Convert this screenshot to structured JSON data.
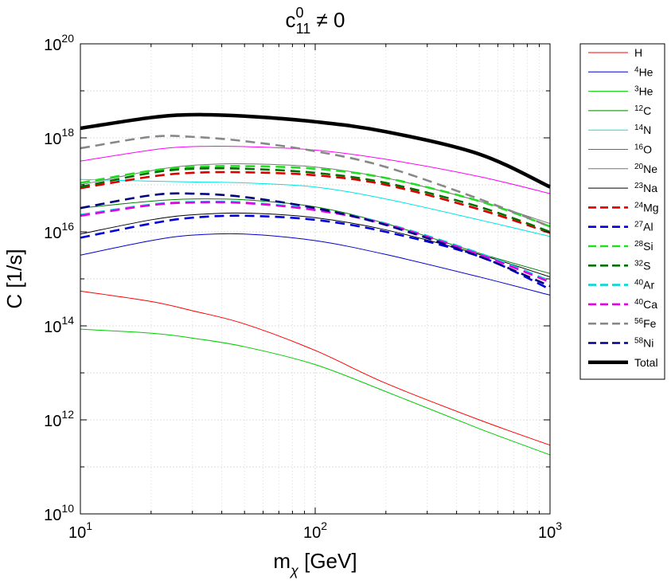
{
  "chart_data": {
    "type": "line",
    "title": "c₁₁⁰ ≠ 0",
    "title_base": "c",
    "title_sup": "0",
    "title_sub": "11",
    "title_rest": " ≠ 0",
    "xlabel_base": "m",
    "xlabel_sub": "χ",
    "xlabel_rest": " [GeV]",
    "ylabel": "C [1/s]",
    "xscale": "log",
    "yscale": "log",
    "xlim": [
      10,
      1000
    ],
    "ylim": [
      10000000000.0,
      1e+20
    ],
    "x_ticks": [
      {
        "value": 10,
        "base": "10",
        "exp": "1"
      },
      {
        "value": 100,
        "base": "10",
        "exp": "2"
      },
      {
        "value": 1000,
        "base": "10",
        "exp": "3"
      }
    ],
    "y_ticks": [
      {
        "value": 10000000000.0,
        "base": "10",
        "exp": "10"
      },
      {
        "value": 1000000000000.0,
        "base": "10",
        "exp": "12"
      },
      {
        "value": 100000000000000.0,
        "base": "10",
        "exp": "14"
      },
      {
        "value": 1e+16,
        "base": "10",
        "exp": "16"
      },
      {
        "value": 1e+18,
        "base": "10",
        "exp": "18"
      },
      {
        "value": 1e+20,
        "base": "10",
        "exp": "20"
      }
    ],
    "grid": true,
    "legend_position": "outside-right-top",
    "x": [
      10,
      20,
      30,
      50,
      100,
      200,
      500,
      1000
    ],
    "series": [
      {
        "name": "H",
        "sup": "",
        "label": "H",
        "color": "#ff0000",
        "style": "solid",
        "weight": "thin",
        "values": [
          550000000000000.0,
          330000000000000.0,
          210000000000000.0,
          110000000000000.0,
          30000000000000.0,
          6000000000000.0,
          1000000000000.0,
          290000000000.0
        ]
      },
      {
        "name": "4He",
        "sup": "4",
        "label": "He",
        "color": "#0000cc",
        "style": "solid",
        "weight": "thin",
        "values": [
          3200000000000000.0,
          6500000000000000.0,
          8500000000000000.0,
          9000000000000000.0,
          6500000000000000.0,
          3300000000000000.0,
          1100000000000000.0,
          450000000000000.0
        ]
      },
      {
        "name": "3He",
        "sup": "3",
        "label": "He",
        "color": "#00cc00",
        "style": "solid",
        "weight": "thin",
        "values": [
          85000000000000.0,
          70000000000000.0,
          55000000000000.0,
          36000000000000.0,
          15000000000000.0,
          4000000000000.0,
          650000000000.0,
          180000000000.0
        ]
      },
      {
        "name": "12C",
        "sup": "12",
        "label": "C",
        "color": "#008000",
        "style": "solid",
        "weight": "thin",
        "values": [
          3.2e+16,
          4.5e+16,
          5e+16,
          4.8e+16,
          3.4e+16,
          1.5e+16,
          3500000000000000.0,
          1300000000000000.0
        ]
      },
      {
        "name": "14N",
        "sup": "14",
        "label": "N",
        "color": "#00e5e5",
        "style": "solid",
        "weight": "thin",
        "values": [
          1.3e+17,
          1.2e+17,
          1.15e+17,
          1.1e+17,
          9e+16,
          5e+16,
          1.8e+16,
          8000000000000000.0
        ]
      },
      {
        "name": "16O",
        "sup": "16",
        "label": "O",
        "color": "#ff00ff",
        "style": "solid",
        "weight": "thin",
        "values": [
          3.2e+17,
          5.5e+17,
          6.5e+17,
          6.5e+17,
          5.5e+17,
          3.5e+17,
          1.5e+17,
          6.5e+16
        ]
      },
      {
        "name": "20Ne",
        "sup": "20",
        "label": "Ne",
        "color": "#777777",
        "style": "solid",
        "weight": "thin",
        "values": [
          1e+17,
          2e+17,
          2.6e+17,
          2.8e+17,
          2.4e+17,
          1.4e+17,
          4.5e+16,
          1.5e+16
        ]
      },
      {
        "name": "23Na",
        "sup": "23",
        "label": "Na",
        "color": "#000000",
        "style": "solid",
        "weight": "thin",
        "values": [
          9000000000000000.0,
          1.8e+16,
          2.3e+16,
          2.5e+16,
          2e+16,
          1.1e+16,
          3300000000000000.0,
          1100000000000000.0
        ]
      },
      {
        "name": "24Mg",
        "sup": "24",
        "label": "Mg",
        "color": "#dd0000",
        "style": "dashed",
        "weight": "medium",
        "values": [
          8.5e+16,
          1.5e+17,
          1.8e+17,
          1.85e+17,
          1.6e+17,
          1e+17,
          3e+16,
          9500000000000000.0
        ]
      },
      {
        "name": "27Al",
        "sup": "27",
        "label": "Al",
        "color": "#0000dd",
        "style": "dashed",
        "weight": "medium",
        "values": [
          7500000000000000.0,
          1.5e+16,
          2e+16,
          2.2e+16,
          1.8e+16,
          1e+16,
          3000000000000000.0,
          600000000000000.0
        ]
      },
      {
        "name": "28Si",
        "sup": "28",
        "label": "Si",
        "color": "#22dd22",
        "style": "dashed",
        "weight": "medium",
        "values": [
          1.1e+17,
          2e+17,
          2.4e+17,
          2.5e+17,
          2.2e+17,
          1.4e+17,
          4.5e+16,
          1.3e+16
        ]
      },
      {
        "name": "32S",
        "sup": "32",
        "label": "S",
        "color": "#007000",
        "style": "dashed",
        "weight": "medium",
        "values": [
          9e+16,
          1.8e+17,
          2.2e+17,
          2.2e+17,
          1.8e+17,
          1.1e+17,
          3.4e+16,
          1e+16
        ]
      },
      {
        "name": "40Ar",
        "sup": "40",
        "label": "Ar",
        "color": "#00d8d8",
        "style": "dashed",
        "weight": "medium",
        "values": [
          2.3e+16,
          3.8e+16,
          4.3e+16,
          4.2e+16,
          3e+16,
          1.5e+16,
          3500000000000000.0,
          900000000000000.0
        ]
      },
      {
        "name": "40Ca",
        "sup": "40",
        "label": "Ca",
        "color": "#e600e6",
        "style": "dashed",
        "weight": "medium",
        "values": [
          2.2e+16,
          3.7e+16,
          4.2e+16,
          4.1e+16,
          2.9e+16,
          1.45e+16,
          3300000000000000.0,
          850000000000000.0
        ]
      },
      {
        "name": "56Fe",
        "sup": "56",
        "label": "Fe",
        "color": "#888888",
        "style": "dashed",
        "weight": "medium",
        "values": [
          6e+17,
          1.05e+18,
          1.05e+18,
          8.5e+17,
          5.2e+17,
          2.4e+17,
          5e+16,
          1.3e+16
        ]
      },
      {
        "name": "58Ni",
        "sup": "58",
        "label": "Ni",
        "color": "#000080",
        "style": "dashed",
        "weight": "medium",
        "values": [
          3.2e+16,
          6e+16,
          6.5e+16,
          5.5e+16,
          3.2e+16,
          1.4e+16,
          3000000000000000.0,
          700000000000000.0
        ]
      },
      {
        "name": "Total",
        "sup": "",
        "label": "Total",
        "color": "#000000",
        "style": "solid",
        "weight": "thick",
        "values": [
          1.6e+18,
          2.7e+18,
          3.1e+18,
          2.9e+18,
          2.2e+18,
          1.35e+18,
          4.5e+17,
          9e+16
        ]
      }
    ]
  }
}
